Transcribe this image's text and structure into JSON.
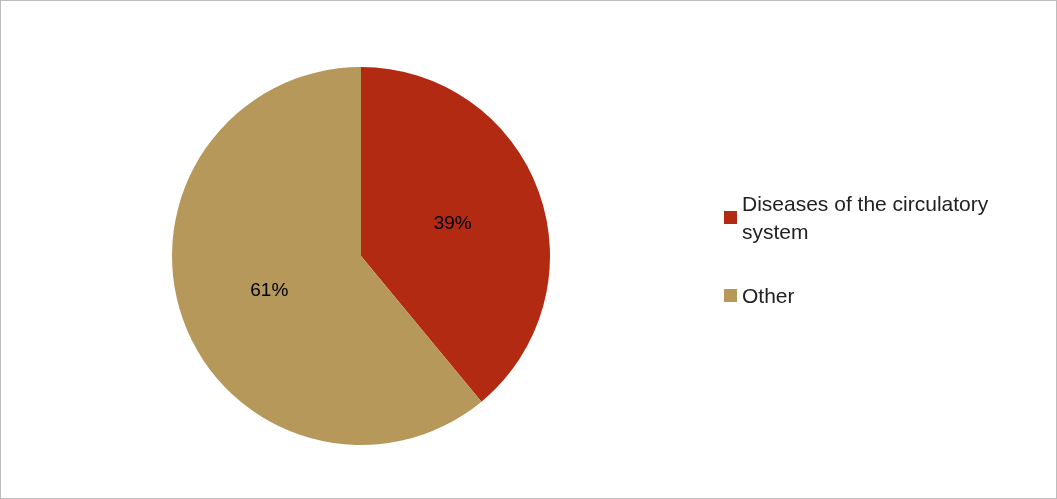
{
  "chart_data": {
    "type": "pie",
    "categories": [
      "Diseases of the circulatory system",
      "Other"
    ],
    "values": [
      39,
      61
    ],
    "colors": [
      "#b22a12",
      "#b5985a"
    ],
    "value_labels": [
      "39%",
      "61%"
    ],
    "legend": "right"
  }
}
